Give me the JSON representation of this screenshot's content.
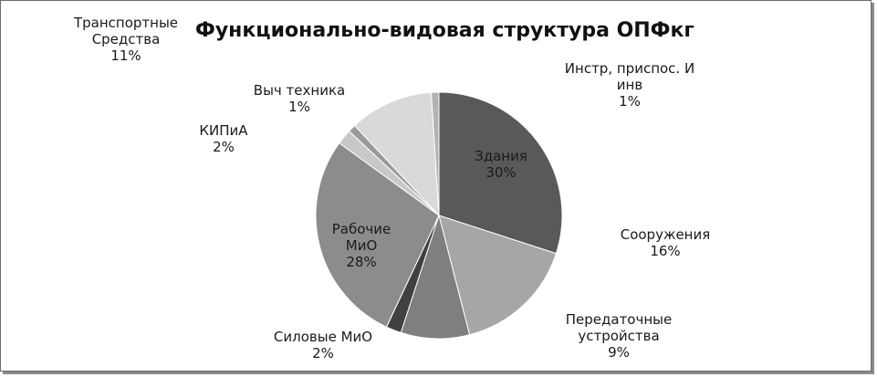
{
  "chart_data": {
    "type": "pie",
    "title": "Функционально-видовая структура ОПФкг",
    "legend": "none",
    "slices": [
      {
        "name": "Здания",
        "percent_label": "30%",
        "value": 30,
        "color": "#595959"
      },
      {
        "name": "Сооружения",
        "percent_label": "16%",
        "value": 16,
        "color": "#a6a6a6"
      },
      {
        "name": "Передаточные устройства",
        "percent_label": "9%",
        "value": 9,
        "color": "#7f7f7f"
      },
      {
        "name": "Силовые МиО",
        "percent_label": "2%",
        "value": 2,
        "color": "#404040"
      },
      {
        "name": "Рабочие МиО",
        "percent_label": "28%",
        "value": 28,
        "color": "#8c8c8c"
      },
      {
        "name": "КИПиА",
        "percent_label": "2%",
        "value": 2,
        "color": "#c8c8c8"
      },
      {
        "name": "Выч техника",
        "percent_label": "1%",
        "value": 1,
        "color": "#9a9a9a"
      },
      {
        "name": "Транспортные Средства",
        "percent_label": "11%",
        "value": 11,
        "color": "#d9d9d9"
      },
      {
        "name": "Инстр, приспос. И инв",
        "percent_label": "1%",
        "value": 1,
        "color": "#b3b3b3"
      }
    ]
  }
}
